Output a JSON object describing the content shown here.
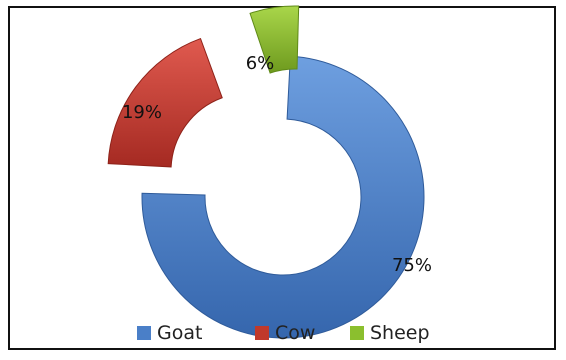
{
  "chart_data": {
    "type": "pie",
    "variant": "doughnut",
    "exploded": true,
    "categories": [
      "Goat",
      "Cow",
      "Sheep"
    ],
    "values": [
      75,
      19,
      6
    ],
    "labels": [
      "75%",
      "19%",
      "6%"
    ],
    "colors": [
      "#4a7fc8",
      "#c0392b",
      "#8bbf2e"
    ],
    "legend_position": "bottom"
  }
}
